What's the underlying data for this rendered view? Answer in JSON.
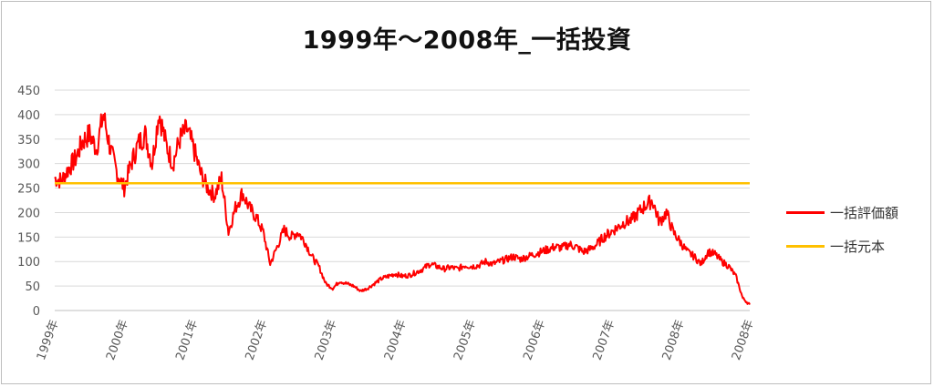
{
  "chart_data": {
    "type": "line",
    "title": "1999年～2008年_一括投資",
    "xlabel": "",
    "ylabel": "",
    "ylim": [
      0,
      450
    ],
    "yticks": [
      0,
      50,
      100,
      150,
      200,
      250,
      300,
      350,
      400,
      450
    ],
    "xticks": [
      "1999年",
      "2000年",
      "2001年",
      "2002年",
      "2003年",
      "2004年",
      "2005年",
      "2006年",
      "2007年",
      "2008年",
      "2008年"
    ],
    "grid": true,
    "legend_position": "right",
    "series": [
      {
        "name": "一括評価額",
        "color": "#ff0000",
        "x": [
          0,
          0.1,
          0.2,
          0.3,
          0.4,
          0.5,
          0.6,
          0.7,
          0.8,
          0.9,
          1.0,
          1.1,
          1.2,
          1.3,
          1.4,
          1.5,
          1.6,
          1.7,
          1.8,
          1.9,
          2.0,
          2.1,
          2.2,
          2.3,
          2.4,
          2.5,
          2.6,
          2.7,
          2.8,
          2.9,
          3.0,
          3.1,
          3.2,
          3.3,
          3.4,
          3.5,
          3.6,
          3.7,
          3.8,
          3.9,
          4.0,
          4.1,
          4.2,
          4.3,
          4.4,
          4.5,
          4.6,
          4.7,
          4.8,
          4.9,
          5.0,
          5.1,
          5.2,
          5.3,
          5.4,
          5.5,
          5.6,
          5.7,
          5.8,
          5.9,
          6.0,
          6.1,
          6.2,
          6.3,
          6.4,
          6.5,
          6.6,
          6.7,
          6.8,
          6.9,
          7.0,
          7.1,
          7.2,
          7.3,
          7.4,
          7.5,
          7.6,
          7.7,
          7.8,
          7.9,
          8.0,
          8.1,
          8.2,
          8.3,
          8.4,
          8.5,
          8.6,
          8.7,
          8.8,
          8.9,
          9.0,
          9.1,
          9.2,
          9.3,
          9.4,
          9.5,
          9.6,
          9.7,
          9.8,
          9.9,
          10.0
        ],
        "values": [
          270,
          265,
          290,
          310,
          345,
          360,
          330,
          400,
          330,
          280,
          250,
          300,
          340,
          360,
          300,
          405,
          340,
          300,
          350,
          370,
          330,
          280,
          250,
          235,
          270,
          160,
          210,
          240,
          210,
          190,
          160,
          95,
          130,
          165,
          150,
          160,
          140,
          110,
          90,
          55,
          45,
          60,
          55,
          50,
          40,
          45,
          55,
          65,
          70,
          75,
          70,
          72,
          78,
          85,
          95,
          90,
          85,
          88,
          85,
          92,
          90,
          92,
          100,
          95,
          100,
          105,
          110,
          105,
          110,
          115,
          120,
          125,
          130,
          128,
          135,
          130,
          120,
          125,
          135,
          150,
          160,
          170,
          180,
          185,
          200,
          215,
          225,
          180,
          200,
          160,
          140,
          120,
          110,
          95,
          120,
          115,
          100,
          90,
          70,
          25,
          12
        ]
      },
      {
        "name": "一括元本",
        "color": "#ffc000",
        "x": [
          0,
          10
        ],
        "values": [
          260,
          260
        ]
      }
    ]
  }
}
